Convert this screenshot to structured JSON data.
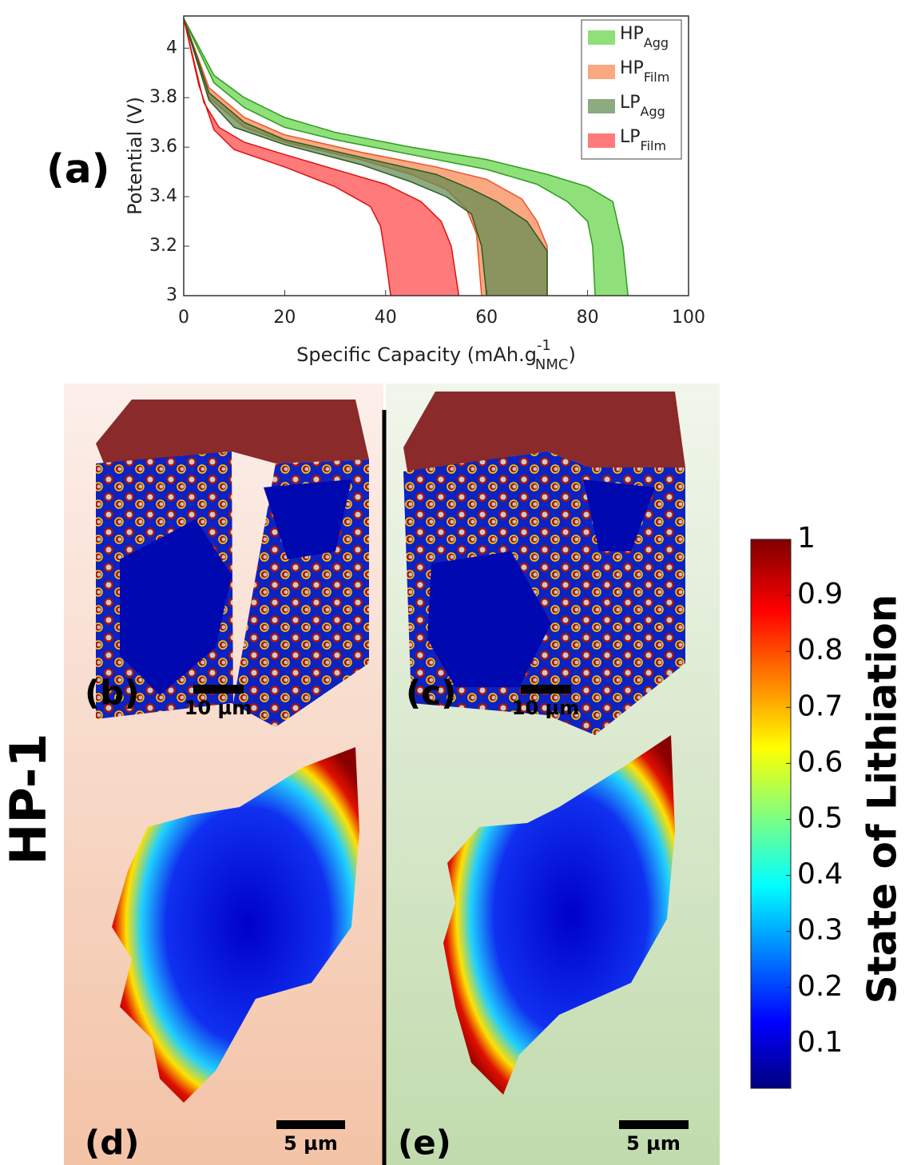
{
  "chart_data": {
    "type": "band",
    "ylabel": "Potential (V)",
    "xlabel": {
      "text": "Specific Capacity (mAh.g",
      "sup": "-1",
      "sub": "NMC",
      "end": ")"
    },
    "xlim": [
      0,
      100
    ],
    "xticks": [
      0,
      20,
      40,
      60,
      80,
      100
    ],
    "ylim": [
      3,
      4.13
    ],
    "yticks": [
      3,
      3.2,
      3.4,
      3.6,
      3.8,
      4
    ],
    "legend": "upper right",
    "series": [
      {
        "name": "HP",
        "subscript": "Agg",
        "color": "#8fe07a",
        "edge": "#2e9a1e",
        "bounds": [
          {
            "x": [
              0,
              6,
              12,
              20,
              30,
              45,
              60,
              72,
              80,
              85,
              87,
              88
            ],
            "values": [
              4.12,
              3.89,
              3.8,
              3.72,
              3.66,
              3.6,
              3.55,
              3.49,
              3.44,
              3.38,
              3.2,
              3.0
            ]
          },
          {
            "x": [
              0,
              6,
              12,
              20,
              30,
              45,
              60,
              70,
              76,
              80,
              81,
              81.5
            ],
            "values": [
              4.12,
              3.86,
              3.76,
              3.68,
              3.63,
              3.57,
              3.51,
              3.45,
              3.38,
              3.3,
              3.2,
              3.0
            ]
          }
        ]
      },
      {
        "name": "HP",
        "subscript": "Film",
        "color": "#f9a882",
        "edge": "#e8562a",
        "bounds": [
          {
            "x": [
              0,
              5,
              12,
              20,
              35,
              50,
              60,
              67,
              70,
              72,
              72
            ],
            "values": [
              4.12,
              3.84,
              3.72,
              3.65,
              3.58,
              3.52,
              3.47,
              3.39,
              3.3,
              3.2,
              3.0
            ]
          },
          {
            "x": [
              0,
              5,
              12,
              20,
              35,
              45,
              52,
              56,
              58,
              59
            ],
            "values": [
              4.12,
              3.8,
              3.68,
              3.62,
              3.55,
              3.49,
              3.43,
              3.35,
              3.25,
              3.0
            ]
          }
        ]
      },
      {
        "name": "LP",
        "subscript": "Agg",
        "color": "#5f8a50",
        "edge": "#2d5a1d",
        "bounds": [
          {
            "x": [
              0,
              5,
              12,
              20,
              35,
              50,
              57,
              62,
              68,
              72,
              72
            ],
            "values": [
              4.12,
              3.82,
              3.7,
              3.63,
              3.56,
              3.49,
              3.43,
              3.38,
              3.3,
              3.18,
              3.0
            ]
          },
          {
            "x": [
              0,
              5,
              10,
              20,
              35,
              45,
              52,
              57,
              59,
              60
            ],
            "values": [
              4.12,
              3.79,
              3.68,
              3.61,
              3.53,
              3.46,
              3.4,
              3.33,
              3.2,
              3.0
            ]
          }
        ]
      },
      {
        "name": "LP",
        "subscript": "Film",
        "color": "#ff7a7a",
        "edge": "#e01010",
        "bounds": [
          {
            "x": [
              0,
              4,
              7,
              12,
              20,
              30,
              40,
              47,
              51,
              53,
              54.5
            ],
            "values": [
              4.12,
              3.78,
              3.68,
              3.62,
              3.57,
              3.51,
              3.45,
              3.38,
              3.3,
              3.2,
              3.0
            ]
          },
          {
            "x": [
              0,
              3,
              6,
              10,
              20,
              30,
              37,
              39,
              40,
              41
            ],
            "values": [
              4.12,
              3.85,
              3.67,
              3.59,
              3.52,
              3.44,
              3.36,
              3.28,
              3.15,
              3.0
            ]
          }
        ]
      }
    ]
  },
  "panels": {
    "a": "(a)",
    "b": "(b)",
    "c": "(c)",
    "d": "(d)",
    "e": "(e)"
  },
  "scale_bars": {
    "b": "10 µm",
    "c": "10 µm",
    "d": "5 µm",
    "e": "5 µm"
  },
  "row_label": "HP-1",
  "colorbar": {
    "label": "State of Lithiation",
    "clim": [
      0.02,
      1
    ],
    "ticks": [
      0.1,
      0.2,
      0.3,
      0.4,
      0.5,
      0.6,
      0.7,
      0.8,
      0.9,
      1
    ]
  }
}
